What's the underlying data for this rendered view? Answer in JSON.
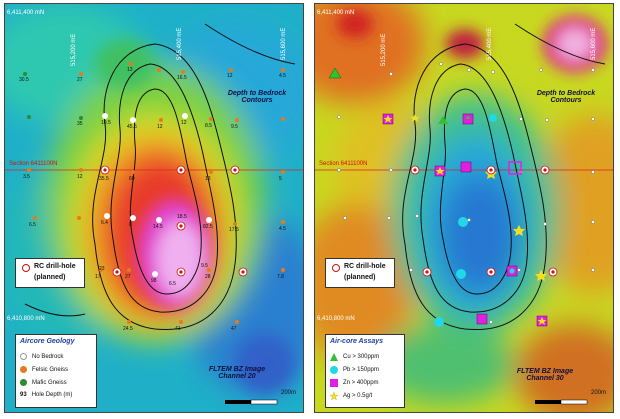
{
  "left": {
    "north_top": "6,411,400 mN",
    "north_bottom": "6,410,800 mN",
    "eastings": [
      "515,200 mE",
      "515,400 mE",
      "515,600 mE"
    ],
    "section_label": "Section 6411100N",
    "contours_title_1": "Depth to Bedrock",
    "contours_title_2": "Contours",
    "image_title_1": "FLTEM BZ Image",
    "image_title_2": "Channel 20",
    "scale_label": "200m",
    "drill_label_1": "RC drill-hole",
    "drill_label_2": "(planned)",
    "legend": {
      "title": "Aircore Geology",
      "items": [
        {
          "label": "No Bedrock",
          "color": "#ffffff"
        },
        {
          "label": "Felsic Gneiss",
          "color": "#e87a1a"
        },
        {
          "label": "Mafic Gneiss",
          "color": "#2e8b2e"
        },
        {
          "label": "Hole Depth (m)",
          "prefix": "93"
        }
      ]
    },
    "depths": [
      "30.5",
      "27",
      "13",
      "16.5",
      "12",
      "4.5",
      "35",
      "10.5",
      "45.5",
      "12",
      "12",
      "8.5",
      "9.5",
      "3.5",
      "12",
      "35.5",
      "60",
      "13",
      "5",
      "6.5",
      "6.4",
      "8",
      "14.5",
      "18.5",
      "82.5",
      "17.5",
      "4.5",
      "17",
      "27",
      "98",
      "9.5",
      "28",
      "7.8",
      "6.5",
      "24.5",
      "41",
      "47",
      "23"
    ]
  },
  "right": {
    "north_top": "6,411,400 mN",
    "north_bottom": "6,410,800 mN",
    "eastings": [
      "515,200 mE",
      "515,400 mE",
      "515,600 mE"
    ],
    "section_label": "Section 6411100N",
    "contours_title_1": "Depth to Bedrock",
    "contours_title_2": "Contours",
    "image_title_1": "FLTEM BZ Image",
    "image_title_2": "Channel 30",
    "scale_label": "200m",
    "drill_label_1": "RC drill-hole",
    "drill_label_2": "(planned)",
    "legend": {
      "title": "Air-core Assays",
      "items": [
        {
          "label": "Cu > 300ppm",
          "color": "#30c030",
          "shape": "triangle"
        },
        {
          "label": "Pb > 150ppm",
          "color": "#20d8e8",
          "shape": "circle"
        },
        {
          "label": "Zn > 400ppm",
          "color": "#e020e0",
          "shape": "square"
        },
        {
          "label": "Ag > 0.5g/t",
          "color": "#f5e020",
          "shape": "star"
        }
      ]
    }
  }
}
